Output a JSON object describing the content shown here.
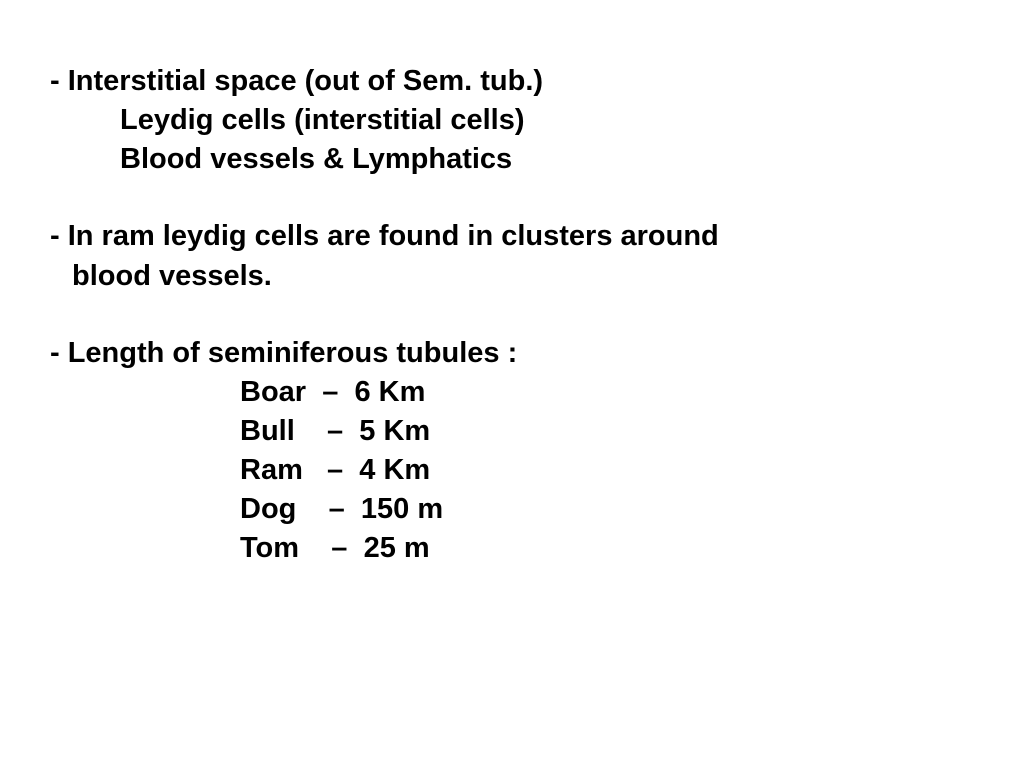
{
  "text_color": "#000000",
  "background_color": "#ffffff",
  "font_size": 29,
  "font_weight": "bold",
  "block1": {
    "line1": "- Interstitial space (out of Sem. tub.)",
    "line2": "Leydig cells (interstitial cells)",
    "line3": "Blood vessels & Lymphatics"
  },
  "block2": {
    "line1": "- In ram leydig cells are found in clusters around",
    "line2": "blood vessels."
  },
  "block3": {
    "heading": "- Length of seminiferous tubules :",
    "rows": [
      {
        "animal": "Boar",
        "sep": "–",
        "length": "6 Km"
      },
      {
        "animal": "Bull",
        "sep": "–",
        "length": "5 Km"
      },
      {
        "animal": "Ram",
        "sep": "–",
        "length": "4 Km"
      },
      {
        "animal": "Dog",
        "sep": "–",
        "length": "150 m"
      },
      {
        "animal": "Tom",
        "sep": "–",
        "length": "25 m"
      }
    ]
  }
}
